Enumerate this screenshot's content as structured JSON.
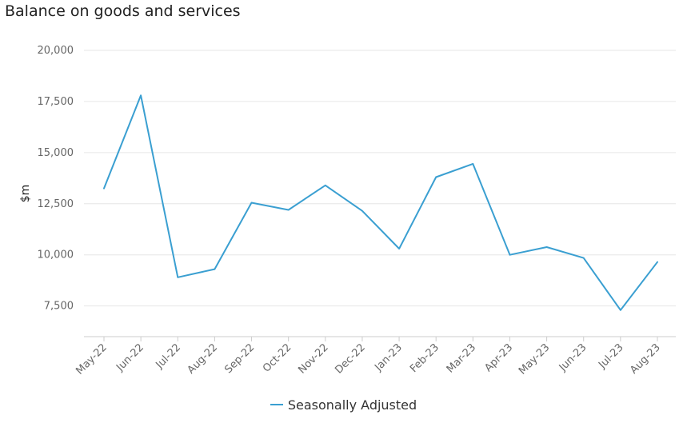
{
  "chart_data": {
    "type": "line",
    "title": "Balance on goods and services",
    "ylabel": "$m",
    "xlabel": "",
    "ylim": [
      6000,
      20000
    ],
    "yticks": [
      7500,
      10000,
      12500,
      15000,
      17500,
      20000
    ],
    "grid": true,
    "legend_position": "bottom",
    "categories": [
      "May-22",
      "Jun-22",
      "Jul-22",
      "Aug-22",
      "Sep-22",
      "Oct-22",
      "Nov-22",
      "Dec-22",
      "Jan-23",
      "Feb-23",
      "Mar-23",
      "Apr-23",
      "May-23",
      "Jun-23",
      "Jul-23",
      "Aug-23"
    ],
    "series": [
      {
        "name": "Seasonally Adjusted",
        "color": "#3a9fd1",
        "values": [
          13250,
          17800,
          8900,
          9300,
          12550,
          12200,
          13400,
          12150,
          10300,
          13800,
          14450,
          10000,
          10380,
          9850,
          7300,
          9650
        ]
      }
    ]
  }
}
